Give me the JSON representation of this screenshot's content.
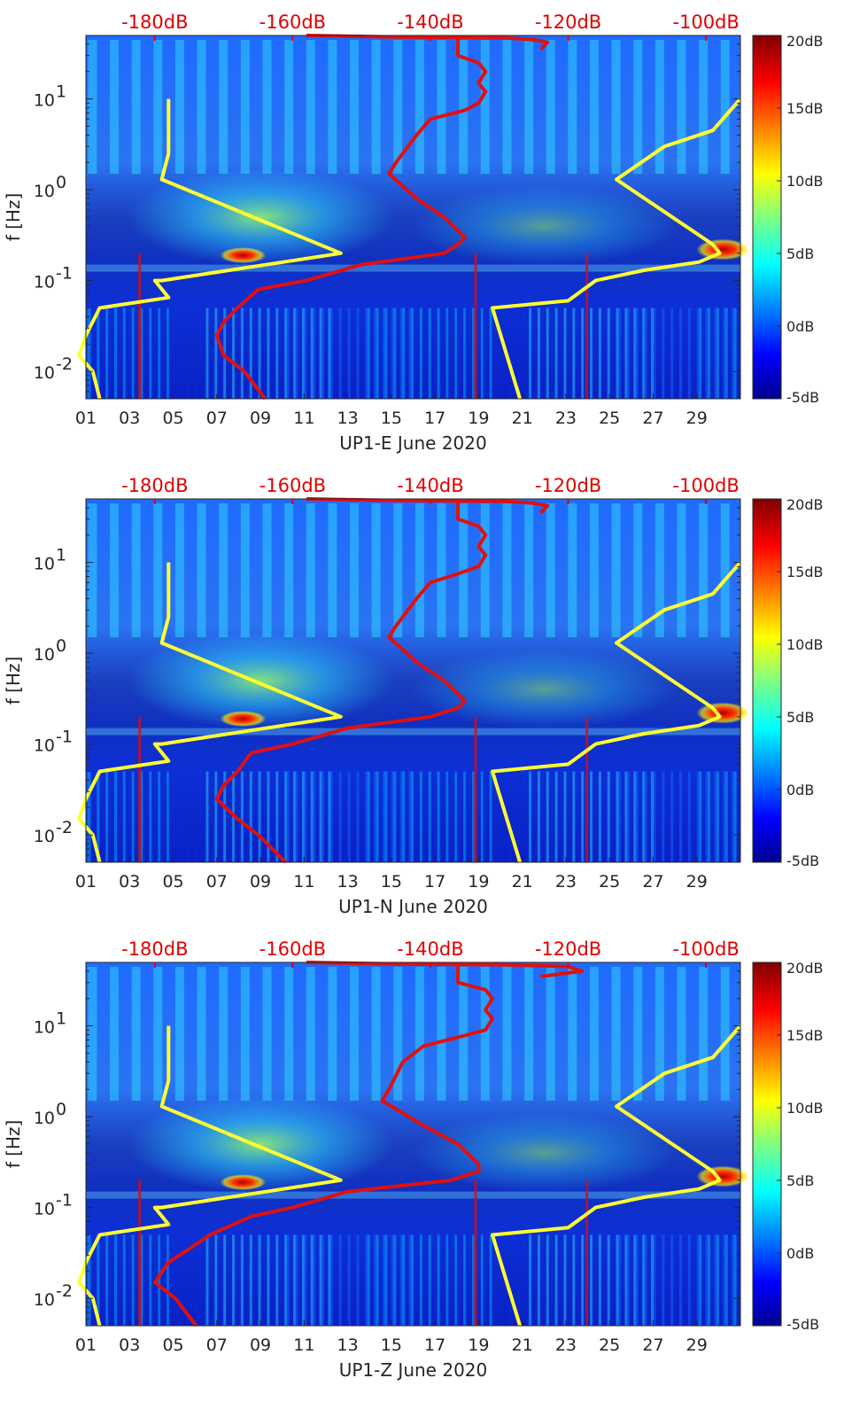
{
  "chart_data": [
    {
      "type": "heatmap",
      "xlabel": "UP1-E June 2020",
      "ylabel": "f [Hz]",
      "x_ticks": [
        "01",
        "03",
        "05",
        "07",
        "09",
        "11",
        "13",
        "15",
        "17",
        "19",
        "21",
        "23",
        "25",
        "27",
        "29"
      ],
      "y_scale": "log",
      "y_ticks": [
        "10^1",
        "10^0",
        "10^-1",
        "10^-2"
      ],
      "ylim": [
        0.005,
        50
      ],
      "xlim": [
        1,
        31
      ],
      "top_axis_ticks": [
        "-180dB",
        "-160dB",
        "-140dB",
        "-120dB",
        "-100dB"
      ],
      "top_axis_range": [
        -190,
        -95
      ],
      "colorbar_ticks": [
        "20dB",
        "15dB",
        "10dB",
        "5dB",
        "0dB",
        "-5dB"
      ],
      "color_range": [
        -5,
        20
      ],
      "series": [
        {
          "color": "#ffff33",
          "points": [
            [
              -178,
              10
            ],
            [
              -178,
              2.5
            ],
            [
              -179,
              1.3
            ],
            [
              -153,
              0.2
            ],
            [
              -179,
              0.1
            ],
            [
              -180,
              0.1
            ],
            [
              -178,
              0.065
            ],
            [
              -188,
              0.05
            ],
            [
              -190,
              0.025
            ],
            [
              -191,
              0.015
            ],
            [
              -189,
              0.01
            ],
            [
              -188,
              0.005
            ]
          ]
        },
        {
          "color": "#ffff33",
          "points": [
            [
              -95,
              10
            ],
            [
              -99,
              4.5
            ],
            [
              -106,
              3
            ],
            [
              -113,
              1.3
            ],
            [
              -99,
              0.25
            ],
            [
              -98,
              0.2
            ],
            [
              -101,
              0.16
            ],
            [
              -109,
              0.13
            ],
            [
              -116,
              0.1
            ],
            [
              -120,
              0.06
            ],
            [
              -131,
              0.05
            ],
            [
              -127,
              0.005
            ]
          ]
        },
        {
          "color": "#e01010",
          "points": [
            [
              -136,
              50
            ],
            [
              -136,
              30
            ],
            [
              -133,
              25
            ],
            [
              -132,
              20
            ],
            [
              -133,
              15
            ],
            [
              -132,
              12
            ],
            [
              -133,
              9
            ],
            [
              -135,
              7.5
            ],
            [
              -140,
              6
            ],
            [
              -142,
              4
            ],
            [
              -145,
              2
            ],
            [
              -146,
              1.5
            ],
            [
              -142,
              0.8
            ],
            [
              -138,
              0.5
            ],
            [
              -135,
              0.3
            ],
            [
              -136,
              0.25
            ],
            [
              -138,
              0.2
            ],
            [
              -150,
              0.15
            ],
            [
              -158,
              0.1
            ],
            [
              -165,
              0.08
            ],
            [
              -168,
              0.05
            ],
            [
              -170,
              0.035
            ],
            [
              -171,
              0.025
            ],
            [
              -170,
              0.015
            ],
            [
              -167,
              0.01
            ],
            [
              -164,
              0.005
            ]
          ]
        },
        {
          "color": "#e01010",
          "points": [
            [
              -158,
              50
            ],
            [
              -145,
              48
            ],
            [
              -129,
              47
            ],
            [
              -125,
              45
            ],
            [
              -123,
              42
            ],
            [
              -124,
              35
            ]
          ]
        }
      ]
    },
    {
      "type": "heatmap",
      "xlabel": "UP1-N June 2020",
      "ylabel": "f [Hz]",
      "x_ticks": [
        "01",
        "03",
        "05",
        "07",
        "09",
        "11",
        "13",
        "15",
        "17",
        "19",
        "21",
        "23",
        "25",
        "27",
        "29"
      ],
      "y_scale": "log",
      "y_ticks": [
        "10^1",
        "10^0",
        "10^-1",
        "10^-2"
      ],
      "ylim": [
        0.005,
        50
      ],
      "xlim": [
        1,
        31
      ],
      "top_axis_ticks": [
        "-180dB",
        "-160dB",
        "-140dB",
        "-120dB",
        "-100dB"
      ],
      "top_axis_range": [
        -190,
        -95
      ],
      "colorbar_ticks": [
        "20dB",
        "15dB",
        "10dB",
        "5dB",
        "0dB",
        "-5dB"
      ],
      "color_range": [
        -5,
        20
      ],
      "series": [
        {
          "color": "#ffff33",
          "points": [
            [
              -178,
              10
            ],
            [
              -178,
              2.5
            ],
            [
              -179,
              1.3
            ],
            [
              -153,
              0.2
            ],
            [
              -179,
              0.1
            ],
            [
              -180,
              0.1
            ],
            [
              -178,
              0.065
            ],
            [
              -188,
              0.05
            ],
            [
              -190,
              0.025
            ],
            [
              -191,
              0.015
            ],
            [
              -189,
              0.01
            ],
            [
              -188,
              0.005
            ]
          ]
        },
        {
          "color": "#ffff33",
          "points": [
            [
              -95,
              10
            ],
            [
              -99,
              4.5
            ],
            [
              -106,
              3
            ],
            [
              -113,
              1.3
            ],
            [
              -99,
              0.25
            ],
            [
              -98,
              0.2
            ],
            [
              -101,
              0.16
            ],
            [
              -109,
              0.13
            ],
            [
              -116,
              0.1
            ],
            [
              -120,
              0.06
            ],
            [
              -131,
              0.05
            ],
            [
              -127,
              0.005
            ]
          ]
        },
        {
          "color": "#e01010",
          "points": [
            [
              -136,
              50
            ],
            [
              -136,
              30
            ],
            [
              -133,
              25
            ],
            [
              -132,
              20
            ],
            [
              -133,
              15
            ],
            [
              -132,
              12
            ],
            [
              -133,
              9
            ],
            [
              -136,
              7.5
            ],
            [
              -140,
              6
            ],
            [
              -142,
              4
            ],
            [
              -145,
              2
            ],
            [
              -146,
              1.5
            ],
            [
              -142,
              0.8
            ],
            [
              -138,
              0.5
            ],
            [
              -135,
              0.3
            ],
            [
              -136,
              0.25
            ],
            [
              -140,
              0.2
            ],
            [
              -152,
              0.15
            ],
            [
              -160,
              0.1
            ],
            [
              -166,
              0.08
            ],
            [
              -168,
              0.05
            ],
            [
              -170,
              0.035
            ],
            [
              -171,
              0.025
            ],
            [
              -168,
              0.015
            ],
            [
              -165,
              0.01
            ],
            [
              -161,
              0.005
            ]
          ]
        },
        {
          "color": "#e01010",
          "points": [
            [
              -158,
              50
            ],
            [
              -145,
              48
            ],
            [
              -129,
              47
            ],
            [
              -125,
              45
            ],
            [
              -123,
              42
            ],
            [
              -124,
              35
            ]
          ]
        }
      ]
    },
    {
      "type": "heatmap",
      "xlabel": "UP1-Z June 2020",
      "ylabel": "f [Hz]",
      "x_ticks": [
        "01",
        "03",
        "05",
        "07",
        "09",
        "11",
        "13",
        "15",
        "17",
        "19",
        "21",
        "23",
        "25",
        "27",
        "29"
      ],
      "y_scale": "log",
      "y_ticks": [
        "10^1",
        "10^0",
        "10^-1",
        "10^-2"
      ],
      "ylim": [
        0.005,
        50
      ],
      "xlim": [
        1,
        31
      ],
      "top_axis_ticks": [
        "-180dB",
        "-160dB",
        "-140dB",
        "-120dB",
        "-100dB"
      ],
      "top_axis_range": [
        -190,
        -95
      ],
      "colorbar_ticks": [
        "20dB",
        "15dB",
        "10dB",
        "5dB",
        "0dB",
        "-5dB"
      ],
      "color_range": [
        -5,
        20
      ],
      "series": [
        {
          "color": "#ffff33",
          "points": [
            [
              -178,
              10
            ],
            [
              -178,
              2.5
            ],
            [
              -179,
              1.3
            ],
            [
              -153,
              0.2
            ],
            [
              -179,
              0.1
            ],
            [
              -180,
              0.1
            ],
            [
              -178,
              0.065
            ],
            [
              -188,
              0.05
            ],
            [
              -190,
              0.025
            ],
            [
              -191,
              0.015
            ],
            [
              -189,
              0.01
            ],
            [
              -188,
              0.005
            ]
          ]
        },
        {
          "color": "#ffff33",
          "points": [
            [
              -95,
              10
            ],
            [
              -99,
              4.5
            ],
            [
              -106,
              3
            ],
            [
              -113,
              1.3
            ],
            [
              -99,
              0.25
            ],
            [
              -98,
              0.2
            ],
            [
              -101,
              0.16
            ],
            [
              -109,
              0.13
            ],
            [
              -116,
              0.1
            ],
            [
              -120,
              0.06
            ],
            [
              -131,
              0.05
            ],
            [
              -127,
              0.005
            ]
          ]
        },
        {
          "color": "#e01010",
          "points": [
            [
              -136,
              50
            ],
            [
              -136,
              30
            ],
            [
              -132,
              25
            ],
            [
              -131,
              20
            ],
            [
              -132,
              15
            ],
            [
              -131,
              12
            ],
            [
              -132,
              9
            ],
            [
              -136,
              7.5
            ],
            [
              -141,
              6
            ],
            [
              -144,
              4
            ],
            [
              -146,
              2
            ],
            [
              -147,
              1.5
            ],
            [
              -141,
              0.8
            ],
            [
              -136,
              0.5
            ],
            [
              -133,
              0.3
            ],
            [
              -133,
              0.25
            ],
            [
              -137,
              0.2
            ],
            [
              -152,
              0.15
            ],
            [
              -160,
              0.1
            ],
            [
              -166,
              0.08
            ],
            [
              -172,
              0.05
            ],
            [
              -175,
              0.035
            ],
            [
              -178,
              0.025
            ],
            [
              -180,
              0.015
            ],
            [
              -177,
              0.01
            ],
            [
              -174,
              0.005
            ]
          ]
        },
        {
          "color": "#e01010",
          "points": [
            [
              -158,
              50
            ],
            [
              -145,
              48
            ],
            [
              -129,
              47
            ],
            [
              -120,
              45
            ],
            [
              -118,
              40
            ],
            [
              -124,
              35
            ]
          ]
        }
      ]
    }
  ]
}
